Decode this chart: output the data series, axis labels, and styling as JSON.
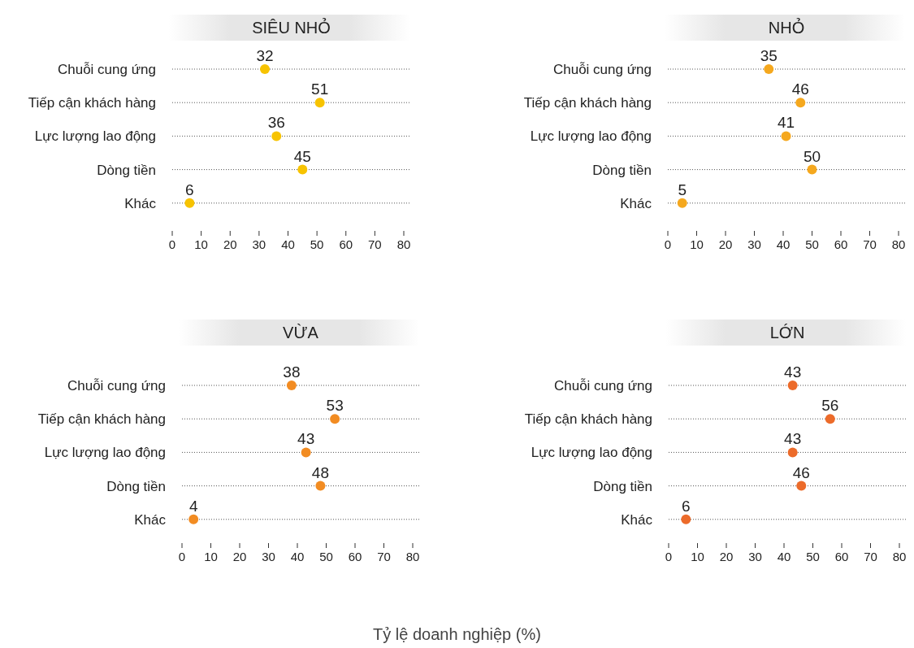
{
  "chart_data": [
    {
      "type": "scatter",
      "orientation": "horizontal",
      "title": "SIÊU NHỎ",
      "categories": [
        "Chuỗi cung ứng",
        "Tiếp cận khách hàng",
        "Lực lượng lao động",
        "Dòng tiền",
        "Khác"
      ],
      "values": [
        32,
        51,
        36,
        45,
        6
      ],
      "color": "#f7c300",
      "xlim": [
        0,
        80
      ],
      "xticks": [
        0,
        10,
        20,
        30,
        40,
        50,
        60,
        70,
        80
      ],
      "data_labels": true,
      "grid": "y",
      "marker": "circle"
    },
    {
      "type": "scatter",
      "orientation": "horizontal",
      "title": "NHỎ",
      "categories": [
        "Chuỗi cung ứng",
        "Tiếp cận khách hàng",
        "Lực lượng lao động",
        "Dòng tiền",
        "Khác"
      ],
      "values": [
        35,
        46,
        41,
        50,
        5
      ],
      "color": "#f5a81e",
      "xlim": [
        0,
        80
      ],
      "xticks": [
        0,
        10,
        20,
        30,
        40,
        50,
        60,
        70,
        80
      ],
      "data_labels": true,
      "grid": "y",
      "marker": "circle"
    },
    {
      "type": "scatter",
      "orientation": "horizontal",
      "title": "VỪA",
      "categories": [
        "Chuỗi cung ứng",
        "Tiếp cận khách hàng",
        "Lực lượng lao động",
        "Dòng tiền",
        "Khác"
      ],
      "values": [
        38,
        53,
        43,
        48,
        4
      ],
      "color": "#f28c22",
      "xlim": [
        0,
        80
      ],
      "xticks": [
        0,
        10,
        20,
        30,
        40,
        50,
        60,
        70,
        80
      ],
      "data_labels": true,
      "grid": "y",
      "marker": "circle"
    },
    {
      "type": "scatter",
      "orientation": "horizontal",
      "title": "LỚN",
      "categories": [
        "Chuỗi cung ứng",
        "Tiếp cận khách hàng",
        "Lực lượng lao động",
        "Dòng tiền",
        "Khác"
      ],
      "values": [
        43,
        56,
        43,
        46,
        6
      ],
      "color": "#ec6b2a",
      "xlim": [
        0,
        80
      ],
      "xticks": [
        0,
        10,
        20,
        30,
        40,
        50,
        60,
        70,
        80
      ],
      "data_labels": true,
      "grid": "y",
      "marker": "circle",
      "annotations": [
        "Tỷ lệ doanh nghiệp (%)"
      ]
    }
  ]
}
